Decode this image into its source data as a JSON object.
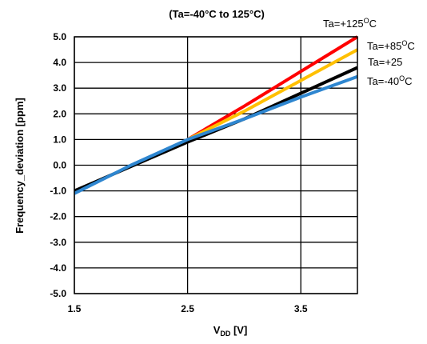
{
  "chart_data": {
    "type": "line",
    "title": "(Ta=-40°C to 125°C)",
    "xlabel": {
      "main": "V",
      "sub": "DD",
      "unit": " [V]"
    },
    "ylabel": "Frequency_deviation [ppm]",
    "xlim": [
      1.5,
      4.0
    ],
    "ylim": [
      -5.0,
      5.0
    ],
    "x_ticks": [
      1.5,
      2.5,
      3.5
    ],
    "x_tick_labels": [
      "1.5",
      "2.5",
      "3.5"
    ],
    "y_ticks": [
      5.0,
      4.0,
      3.0,
      2.0,
      1.0,
      0.0,
      -1.0,
      -2.0,
      -3.0,
      -4.0,
      -5.0
    ],
    "y_tick_labels": [
      "5.0",
      "4.0",
      "3.0",
      "2.0",
      "1.0",
      "0.0",
      "-1.0",
      "-2.0",
      "-3.0",
      "-4.0",
      "-5.0"
    ],
    "grid": true,
    "series": [
      {
        "name": "Ta=+125°C",
        "label_text": "Ta=+125",
        "label_sup": "O",
        "label_suffix": "C",
        "color": "#ff0000",
        "x": [
          2.5,
          3.0,
          3.5,
          4.0
        ],
        "y": [
          1.0,
          2.3,
          3.65,
          5.0
        ]
      },
      {
        "name": "Ta=+85°C",
        "label_text": "Ta=+85",
        "label_sup": "O",
        "label_suffix": "C",
        "color": "#ffc000",
        "x": [
          2.5,
          3.0,
          3.5,
          4.0
        ],
        "y": [
          1.0,
          2.1,
          3.3,
          4.5
        ]
      },
      {
        "name": "Ta=+25",
        "label_text": "Ta=+25",
        "label_sup": "",
        "label_suffix": "",
        "color": "#000000",
        "x": [
          1.5,
          2.0,
          2.5,
          3.0,
          3.5,
          4.0
        ],
        "y": [
          -1.0,
          -0.05,
          0.9,
          1.8,
          2.8,
          3.8
        ]
      },
      {
        "name": "Ta=-40°C",
        "label_text": "Ta=-40",
        "label_sup": "O",
        "label_suffix": "C",
        "color": "#2e86d0",
        "x": [
          1.5,
          2.0,
          2.5,
          3.0,
          3.5,
          4.0
        ],
        "y": [
          -1.1,
          0.0,
          1.0,
          1.8,
          2.65,
          3.45
        ]
      }
    ]
  }
}
